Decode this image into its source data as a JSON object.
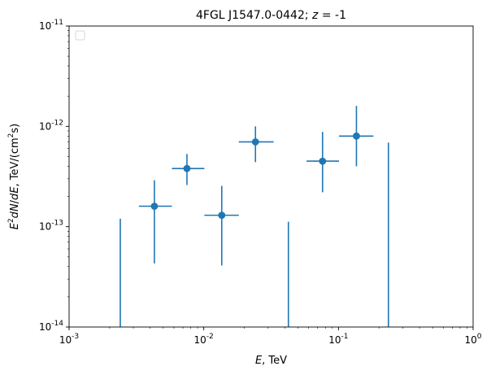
{
  "chart_data": {
    "type": "scatter",
    "title": "4FGL J1547.0-0442; z = -1",
    "xlabel": "E, TeV",
    "ylabel": "E^2 dN/dE, TeV/(cm^2 s)",
    "x_scale": "log",
    "y_scale": "log",
    "xlim": [
      0.001,
      1
    ],
    "ylim": [
      1e-14,
      1e-11
    ],
    "x_ticks": [
      {
        "value": 0.001,
        "label": "10^-3"
      },
      {
        "value": 0.01,
        "label": "10^-2"
      },
      {
        "value": 0.1,
        "label": "10^-1"
      },
      {
        "value": 1,
        "label": "10^0"
      }
    ],
    "y_ticks": [
      {
        "value": 1e-14,
        "label": "10^-14"
      },
      {
        "value": 1e-13,
        "label": "10^-13"
      },
      {
        "value": 1e-12,
        "label": "10^-12"
      },
      {
        "value": 1e-11,
        "label": "10^-11"
      }
    ],
    "grid": false,
    "legend": "upper-left (empty)",
    "series_color": "#1f77b4",
    "points": [
      {
        "x": 0.0043,
        "y": 1.6e-13,
        "x_lo": 0.0033,
        "x_hi": 0.0058,
        "y_lo": 4.3e-14,
        "y_hi": 2.9e-13
      },
      {
        "x": 0.0075,
        "y": 3.8e-13,
        "x_lo": 0.0058,
        "x_hi": 0.0101,
        "y_lo": 2.6e-13,
        "y_hi": 5.3e-13
      },
      {
        "x": 0.0136,
        "y": 1.3e-13,
        "x_lo": 0.0101,
        "x_hi": 0.0182,
        "y_lo": 4.1e-14,
        "y_hi": 2.55e-13
      },
      {
        "x": 0.0242,
        "y": 7e-13,
        "x_lo": 0.0182,
        "x_hi": 0.033,
        "y_lo": 4.4e-13,
        "y_hi": 1e-12
      },
      {
        "x": 0.0762,
        "y": 4.5e-13,
        "x_lo": 0.058,
        "x_hi": 0.101,
        "y_lo": 2.2e-13,
        "y_hi": 8.8e-13
      },
      {
        "x": 0.136,
        "y": 8e-13,
        "x_lo": 0.101,
        "x_hi": 0.182,
        "y_lo": 4e-13,
        "y_hi": 1.6e-12
      }
    ],
    "upper_limits": [
      {
        "x": 0.0024,
        "y_hi": 1.2e-13
      },
      {
        "x": 0.0425,
        "y_hi": 1.12e-13
      },
      {
        "x": 0.235,
        "y_hi": 6.9e-13
      }
    ]
  }
}
